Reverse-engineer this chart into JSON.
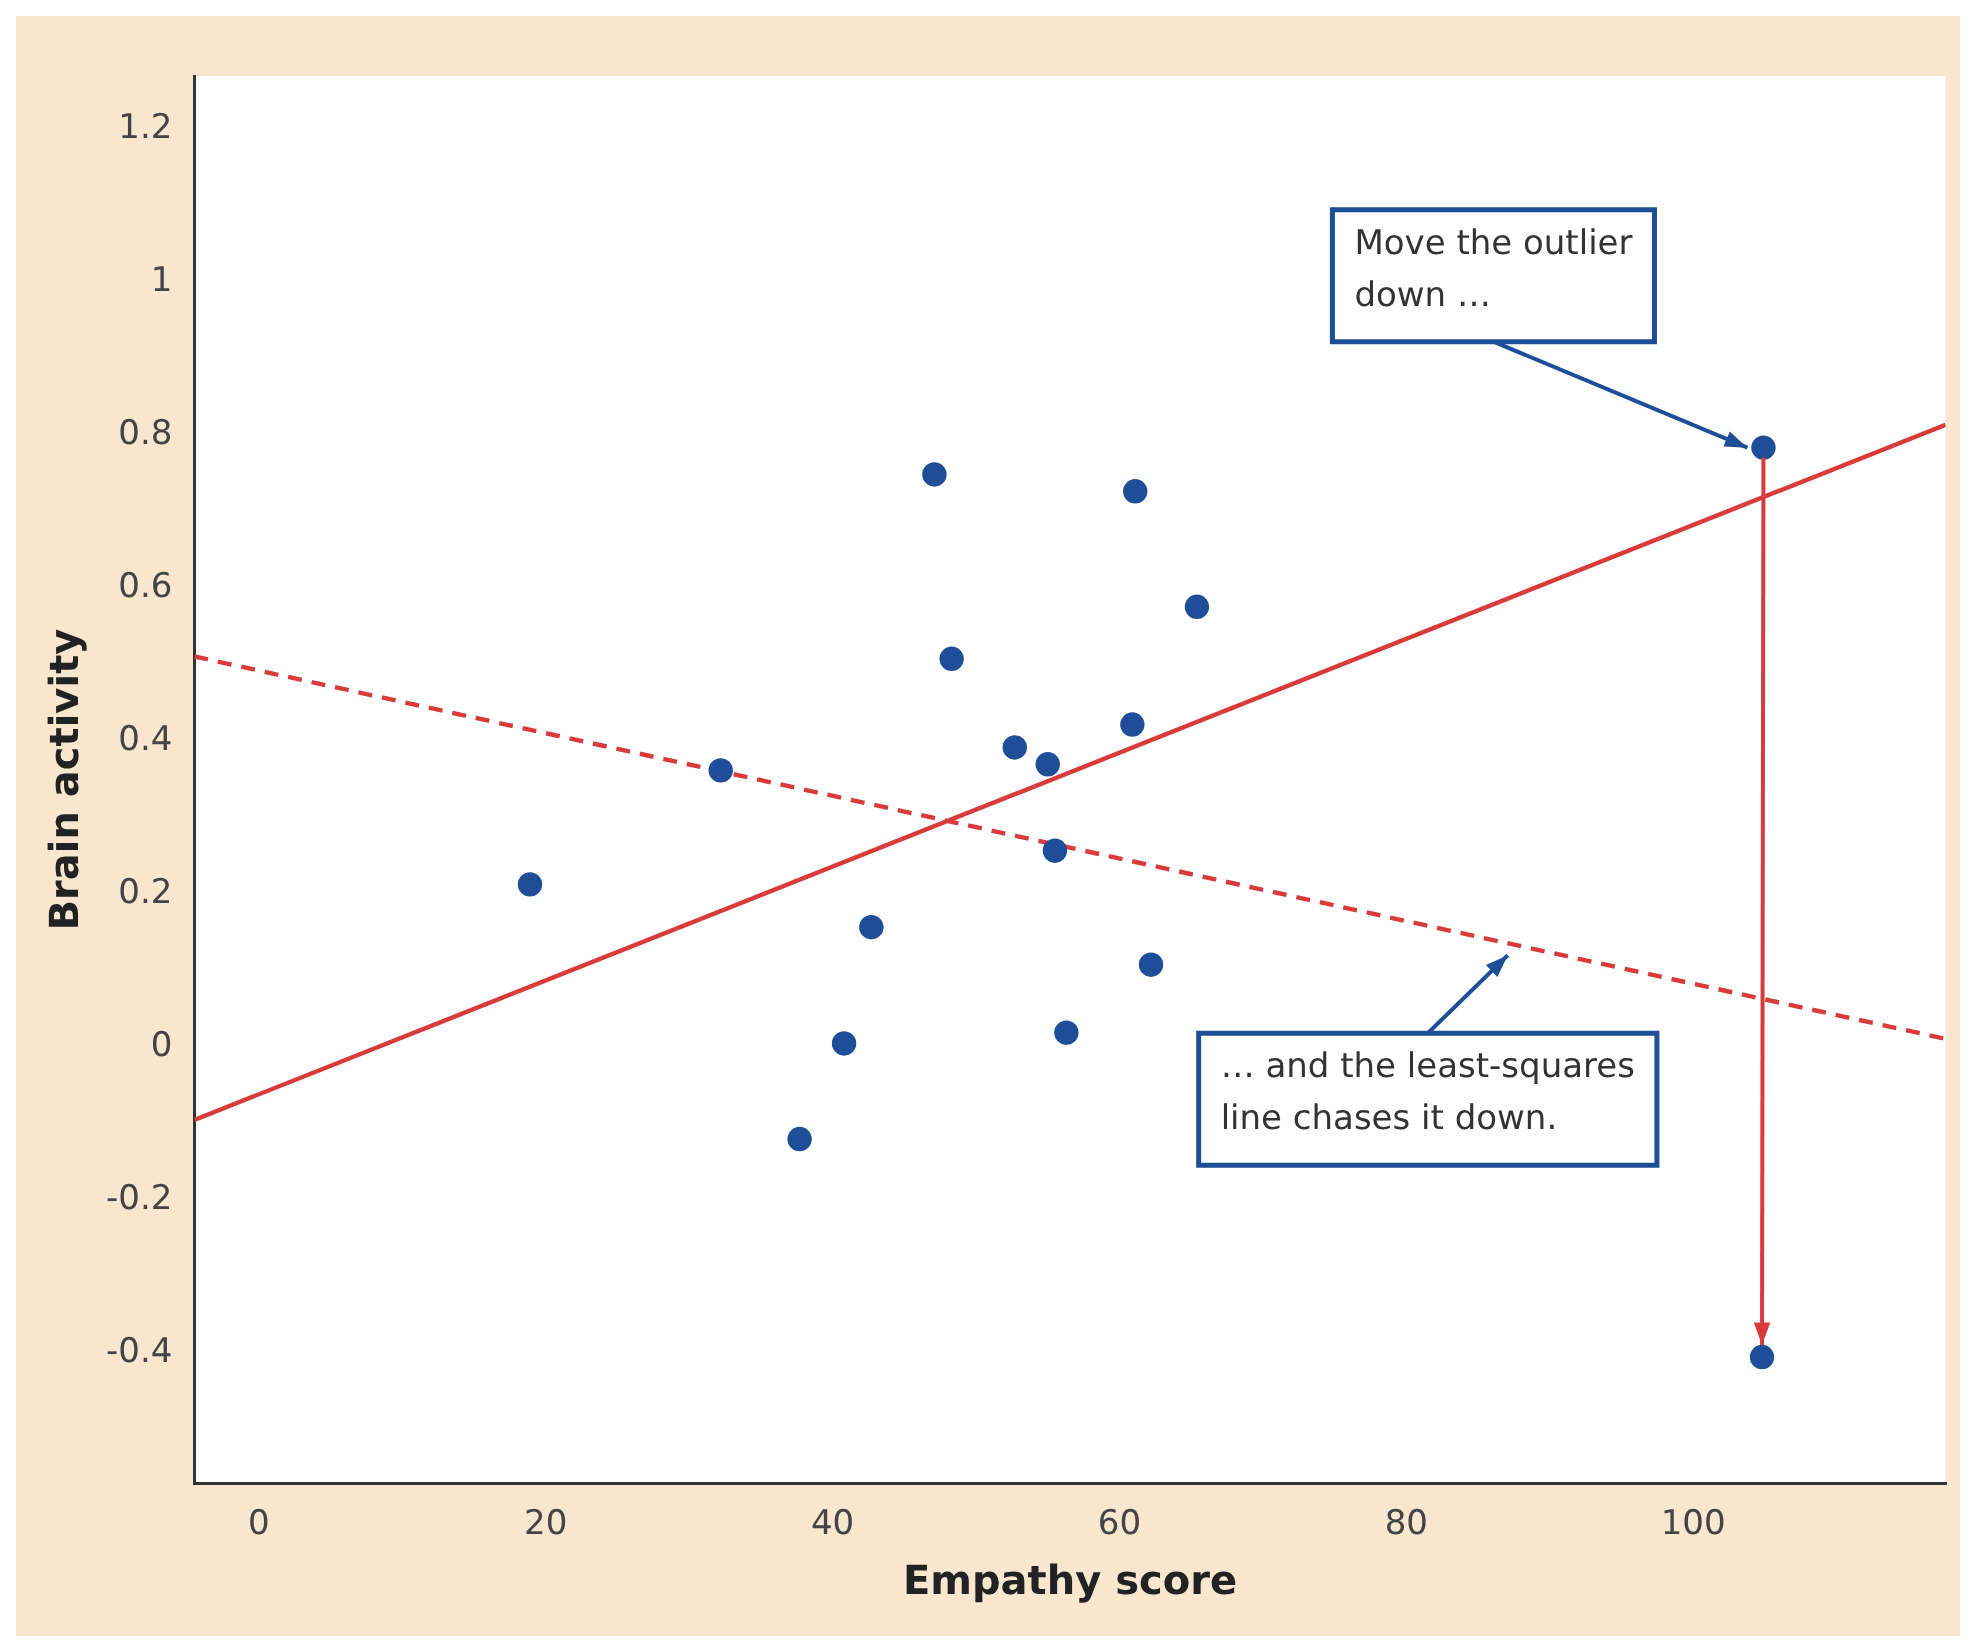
{
  "chart_data": {
    "type": "scatter",
    "xlabel": "Empathy score",
    "ylabel": "Brain activity",
    "xlim": [
      -4.5,
      117.6
    ],
    "xticks": [
      0,
      20,
      40,
      60,
      80,
      100
    ],
    "ylim": [
      -0.57,
      1.27
    ],
    "yticks": [
      -0.4,
      -0.2,
      0.0,
      0.2,
      0.4,
      0.6,
      0.8,
      1.0,
      1.2
    ],
    "grid": false,
    "legend": false,
    "marker": "circle",
    "series": [
      {
        "color": "#1f4e99",
        "x": [
          18.9,
          32.2,
          37.7,
          40.8,
          42.7,
          47.1,
          48.3,
          52.7,
          55.0,
          55.5,
          56.3,
          61.1,
          60.9,
          62.2,
          65.4,
          104.9,
          104.8
        ],
        "values": [
          0.213,
          0.362,
          -0.12,
          0.005,
          0.157,
          0.749,
          0.508,
          0.392,
          0.37,
          0.257,
          0.019,
          0.727,
          0.422,
          0.108,
          0.576,
          0.784,
          -0.405
        ]
      },
      {
        "type": "line",
        "color": "#d93a3a",
        "line_style": "solid",
        "marker": "none",
        "x": [
          -4.5,
          117.6
        ],
        "values": [
          -0.095,
          0.814
        ]
      },
      {
        "type": "line",
        "color": "#d93a3a",
        "line_style": "dashed",
        "marker": "none",
        "x": [
          -4.5,
          117.6
        ],
        "values": [
          0.511,
          0.011
        ]
      }
    ],
    "annotations": [
      {
        "text": "Move the outlier down …",
        "x": 104.9,
        "y": 0.784
      },
      "… and the least-squares line chases it down."
    ]
  }
}
